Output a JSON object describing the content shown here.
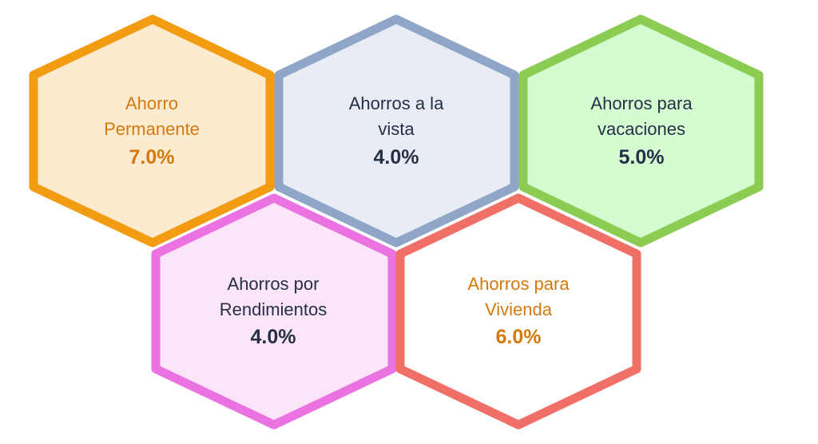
{
  "hexagons": [
    {
      "label_lines": [
        "Ahorro",
        "Permanente"
      ],
      "value": "7.0%",
      "fill": "#FDEBD0",
      "stroke": "#F39C12",
      "text_color": "#D4790E"
    },
    {
      "label_lines": [
        "Ahorros a la",
        "vista"
      ],
      "value": "4.0%",
      "fill": "#E8EDF5",
      "stroke": "#8FA6C8",
      "text_color": "#253047"
    },
    {
      "label_lines": [
        "Ahorros para",
        "vacaciones"
      ],
      "value": "5.0%",
      "fill": "#D5FCD0",
      "stroke": "#8BCC52",
      "text_color": "#253047"
    },
    {
      "label_lines": [
        "Ahorros por",
        "Rendimientos"
      ],
      "value": "4.0%",
      "fill": "#FCE4F9",
      "stroke": "#EB72E1",
      "text_color": "#253047"
    },
    {
      "label_lines": [
        "Ahorros para",
        "Vivienda"
      ],
      "value": "6.0%",
      "fill": "#FFFFFF",
      "stroke": "#F07067",
      "text_color": "#D4790E"
    }
  ]
}
